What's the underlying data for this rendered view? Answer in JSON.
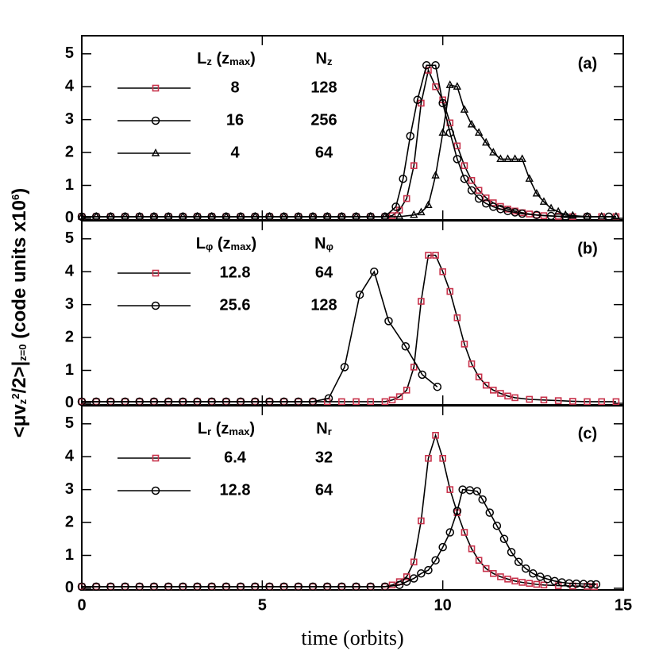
{
  "chart_data": [
    {
      "type": "line",
      "panel_label": "(a)",
      "xlim": [
        0,
        15
      ],
      "xticks": [
        0,
        5,
        10,
        15
      ],
      "show_xtick_labels": false,
      "ylim": [
        -0.05,
        5.55
      ],
      "yticks": [
        0,
        1,
        2,
        3,
        4,
        5
      ],
      "legend_header": [
        [
          {
            "text": "L"
          },
          {
            "text": "z",
            "script": "sub"
          },
          {
            "text": " (z"
          },
          {
            "text": "max",
            "script": "sub"
          },
          {
            "text": ")"
          }
        ],
        [
          {
            "text": "N"
          },
          {
            "text": "z",
            "script": "sub"
          }
        ]
      ],
      "series": [
        {
          "name": "8",
          "legend_cells": [
            "8",
            "128"
          ],
          "color": "#c8324b",
          "marker": "square",
          "x": [
            0,
            0.4,
            0.8,
            1.2,
            1.6,
            2,
            2.4,
            2.8,
            3.2,
            3.6,
            4,
            4.4,
            4.8,
            5.2,
            5.6,
            6,
            6.4,
            6.8,
            7.2,
            7.6,
            8,
            8.4,
            8.6,
            8.8,
            9.0,
            9.2,
            9.4,
            9.6,
            9.8,
            10.0,
            10.2,
            10.4,
            10.6,
            10.8,
            11.0,
            11.2,
            11.4,
            11.6,
            11.8,
            12.0,
            12.2,
            12.4,
            12.6,
            12.8,
            13.2,
            13.6,
            14.0,
            14.4,
            14.8
          ],
          "values": [
            0.05,
            0.05,
            0.05,
            0.05,
            0.05,
            0.05,
            0.05,
            0.05,
            0.05,
            0.05,
            0.05,
            0.05,
            0.05,
            0.05,
            0.05,
            0.05,
            0.05,
            0.05,
            0.05,
            0.05,
            0.05,
            0.05,
            0.08,
            0.25,
            0.6,
            1.6,
            3.5,
            4.5,
            4.0,
            3.6,
            2.9,
            2.2,
            1.6,
            1.15,
            0.85,
            0.62,
            0.47,
            0.36,
            0.28,
            0.22,
            0.17,
            0.13,
            0.1,
            0.08,
            0.06,
            0.05,
            0.05,
            0.05,
            0.05
          ]
        },
        {
          "name": "16",
          "legend_cells": [
            "16",
            "256"
          ],
          "color": "#000000",
          "marker": "circle",
          "x": [
            0,
            0.4,
            0.8,
            1.2,
            1.6,
            2,
            2.4,
            2.8,
            3.2,
            3.6,
            4,
            4.4,
            4.8,
            5.2,
            5.6,
            6,
            6.4,
            6.8,
            7.2,
            7.6,
            8,
            8.4,
            8.7,
            8.9,
            9.1,
            9.3,
            9.55,
            9.8,
            10.0,
            10.2,
            10.4,
            10.6,
            10.8,
            11.0,
            11.2,
            11.4,
            11.6,
            11.8,
            12.0,
            12.2,
            12.6,
            13.0,
            13.4,
            14.0,
            14.6
          ],
          "values": [
            0.05,
            0.05,
            0.05,
            0.05,
            0.05,
            0.05,
            0.05,
            0.05,
            0.05,
            0.05,
            0.05,
            0.05,
            0.05,
            0.05,
            0.05,
            0.05,
            0.05,
            0.05,
            0.05,
            0.05,
            0.05,
            0.05,
            0.35,
            1.2,
            2.5,
            3.6,
            4.65,
            4.65,
            3.5,
            2.6,
            1.8,
            1.2,
            0.85,
            0.6,
            0.45,
            0.35,
            0.28,
            0.22,
            0.18,
            0.14,
            0.1,
            0.07,
            0.05,
            0.05,
            0.05
          ]
        },
        {
          "name": "4",
          "legend_cells": [
            "4",
            "64"
          ],
          "color": "#000000",
          "marker": "triangle",
          "x": [
            0,
            0.4,
            0.8,
            1.2,
            1.6,
            2,
            2.4,
            2.8,
            3.2,
            3.6,
            4,
            4.4,
            4.8,
            5.2,
            5.6,
            6,
            6.4,
            6.8,
            7.2,
            7.6,
            8,
            8.4,
            8.8,
            9.2,
            9.4,
            9.6,
            9.8,
            10.0,
            10.2,
            10.4,
            10.6,
            10.8,
            11.0,
            11.2,
            11.4,
            11.6,
            11.8,
            12.0,
            12.2,
            12.4,
            12.6,
            12.8,
            13.0,
            13.2,
            13.4,
            13.6,
            14.0,
            14.4,
            14.8
          ],
          "values": [
            0.05,
            0.05,
            0.05,
            0.05,
            0.05,
            0.05,
            0.05,
            0.05,
            0.05,
            0.05,
            0.05,
            0.05,
            0.05,
            0.05,
            0.05,
            0.05,
            0.05,
            0.05,
            0.05,
            0.05,
            0.05,
            0.05,
            0.05,
            0.1,
            0.18,
            0.4,
            1.3,
            2.6,
            4.05,
            4.0,
            3.3,
            2.85,
            2.6,
            2.3,
            2.0,
            1.8,
            1.8,
            1.8,
            1.8,
            1.2,
            0.75,
            0.5,
            0.3,
            0.2,
            0.1,
            0.08,
            0.05,
            0.05,
            0.05
          ]
        }
      ]
    },
    {
      "type": "line",
      "panel_label": "(b)",
      "xlim": [
        0,
        15
      ],
      "xticks": [
        0,
        5,
        10,
        15
      ],
      "show_xtick_labels": false,
      "ylim": [
        -0.05,
        5.55
      ],
      "yticks": [
        0,
        1,
        2,
        3,
        4,
        5
      ],
      "legend_header": [
        [
          {
            "text": "L"
          },
          {
            "text": "φ",
            "script": "sub"
          },
          {
            "text": " (z"
          },
          {
            "text": "max",
            "script": "sub"
          },
          {
            "text": ")"
          }
        ],
        [
          {
            "text": "N"
          },
          {
            "text": "φ",
            "script": "sub"
          }
        ]
      ],
      "series": [
        {
          "name": "12.8",
          "legend_cells": [
            "12.8",
            "64"
          ],
          "color": "#c8324b",
          "marker": "square",
          "x": [
            0,
            0.4,
            0.8,
            1.2,
            1.6,
            2,
            2.4,
            2.8,
            3.2,
            3.6,
            4,
            4.4,
            4.8,
            5.2,
            5.6,
            6,
            6.4,
            6.8,
            7.2,
            7.6,
            8,
            8.4,
            8.6,
            8.8,
            9.0,
            9.2,
            9.4,
            9.6,
            9.8,
            10.0,
            10.2,
            10.4,
            10.6,
            10.8,
            11.0,
            11.2,
            11.4,
            11.6,
            11.8,
            12.0,
            12.4,
            12.8,
            13.2,
            13.6,
            14.0,
            14.4,
            14.8
          ],
          "values": [
            0.05,
            0.05,
            0.05,
            0.05,
            0.05,
            0.05,
            0.05,
            0.05,
            0.05,
            0.05,
            0.05,
            0.05,
            0.05,
            0.05,
            0.05,
            0.05,
            0.05,
            0.05,
            0.05,
            0.05,
            0.05,
            0.05,
            0.1,
            0.2,
            0.4,
            1.1,
            3.1,
            4.5,
            4.5,
            4.0,
            3.4,
            2.6,
            1.8,
            1.2,
            0.8,
            0.55,
            0.4,
            0.3,
            0.22,
            0.17,
            0.12,
            0.1,
            0.08,
            0.06,
            0.05,
            0.05,
            0.05
          ]
        },
        {
          "name": "25.6",
          "legend_cells": [
            "25.6",
            "128"
          ],
          "color": "#000000",
          "marker": "circle",
          "x": [
            0,
            0.4,
            0.8,
            1.2,
            1.6,
            2,
            2.4,
            2.8,
            3.2,
            3.6,
            4,
            4.4,
            4.8,
            5.2,
            5.6,
            6,
            6.4,
            6.84,
            7.28,
            7.7,
            8.1,
            8.5,
            8.97,
            9.43,
            9.85
          ],
          "values": [
            0.05,
            0.05,
            0.05,
            0.05,
            0.05,
            0.05,
            0.05,
            0.05,
            0.05,
            0.05,
            0.05,
            0.05,
            0.05,
            0.05,
            0.05,
            0.05,
            0.05,
            0.15,
            1.1,
            3.3,
            4.0,
            2.5,
            1.73,
            0.87,
            0.5
          ]
        }
      ]
    },
    {
      "type": "line",
      "panel_label": "(c)",
      "xlim": [
        0,
        15
      ],
      "xticks": [
        0,
        5,
        10,
        15
      ],
      "show_xtick_labels": true,
      "xlabel": "time (orbits)",
      "ylim": [
        -0.05,
        5.55
      ],
      "yticks": [
        0,
        1,
        2,
        3,
        4,
        5
      ],
      "ylabel": [
        {
          "text": "<μv"
        },
        {
          "text": "z",
          "script": "sub"
        },
        {
          "text": "2",
          "script": "sup"
        },
        {
          "text": "/2>|"
        },
        {
          "text": "z=0",
          "script": "sub"
        },
        {
          "text": " (code units x10"
        },
        {
          "text": "6",
          "script": "sup"
        },
        {
          "text": ")"
        }
      ],
      "legend_header": [
        [
          {
            "text": "L"
          },
          {
            "text": "r",
            "script": "sub"
          },
          {
            "text": " (z"
          },
          {
            "text": "max",
            "script": "sub"
          },
          {
            "text": ")"
          }
        ],
        [
          {
            "text": "N"
          },
          {
            "text": "r",
            "script": "sub"
          }
        ]
      ],
      "series": [
        {
          "name": "6.4",
          "legend_cells": [
            "6.4",
            "32"
          ],
          "color": "#c8324b",
          "marker": "square",
          "x": [
            0,
            0.4,
            0.8,
            1.2,
            1.6,
            2,
            2.4,
            2.8,
            3.2,
            3.6,
            4,
            4.4,
            4.8,
            5.2,
            5.6,
            6,
            6.4,
            6.8,
            7.2,
            7.6,
            8,
            8.4,
            8.6,
            8.8,
            9.0,
            9.2,
            9.4,
            9.6,
            9.8,
            10.0,
            10.2,
            10.4,
            10.6,
            10.8,
            11.0,
            11.2,
            11.4,
            11.6,
            11.8,
            12.0,
            12.2,
            12.4,
            12.6,
            12.8,
            13.2,
            13.6,
            14.0,
            14.2
          ],
          "values": [
            0.05,
            0.05,
            0.05,
            0.05,
            0.05,
            0.05,
            0.05,
            0.05,
            0.05,
            0.05,
            0.05,
            0.05,
            0.05,
            0.05,
            0.05,
            0.05,
            0.05,
            0.05,
            0.05,
            0.05,
            0.05,
            0.05,
            0.1,
            0.2,
            0.35,
            0.8,
            2.05,
            3.95,
            4.65,
            3.95,
            3.0,
            2.3,
            1.7,
            1.2,
            0.85,
            0.6,
            0.45,
            0.35,
            0.28,
            0.22,
            0.18,
            0.15,
            0.12,
            0.1,
            0.08,
            0.07,
            0.06,
            0.05
          ]
        },
        {
          "name": "12.8",
          "legend_cells": [
            "12.8",
            "64"
          ],
          "color": "#000000",
          "marker": "circle",
          "x": [
            0,
            0.4,
            0.8,
            1.2,
            1.6,
            2,
            2.4,
            2.8,
            3.2,
            3.6,
            4,
            4.4,
            4.8,
            5.2,
            5.6,
            6,
            6.4,
            6.8,
            7.2,
            7.6,
            8,
            8.4,
            8.8,
            9.0,
            9.2,
            9.4,
            9.6,
            9.8,
            10.0,
            10.2,
            10.4,
            10.55,
            10.75,
            10.95,
            11.1,
            11.3,
            11.5,
            11.7,
            11.9,
            12.1,
            12.3,
            12.5,
            12.7,
            12.9,
            13.1,
            13.3,
            13.5,
            13.7,
            13.9,
            14.1,
            14.25
          ],
          "values": [
            0.05,
            0.05,
            0.05,
            0.05,
            0.05,
            0.05,
            0.05,
            0.05,
            0.05,
            0.05,
            0.05,
            0.05,
            0.05,
            0.05,
            0.05,
            0.05,
            0.05,
            0.05,
            0.05,
            0.05,
            0.05,
            0.05,
            0.1,
            0.2,
            0.3,
            0.45,
            0.55,
            0.85,
            1.25,
            1.7,
            2.35,
            3.0,
            2.98,
            2.95,
            2.7,
            2.3,
            1.9,
            1.5,
            1.1,
            0.8,
            0.6,
            0.45,
            0.35,
            0.28,
            0.22,
            0.18,
            0.15,
            0.14,
            0.13,
            0.12,
            0.12
          ]
        }
      ]
    }
  ]
}
